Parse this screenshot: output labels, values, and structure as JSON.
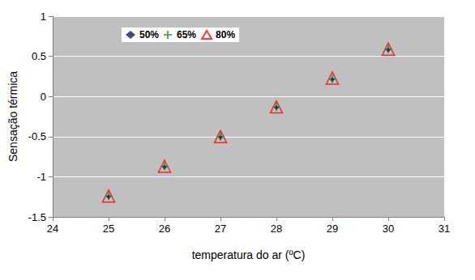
{
  "chart_data": {
    "type": "scatter",
    "xlabel": "temperatura do ar (ºC)",
    "ylabel": "Sensação térmica",
    "x": [
      25,
      26,
      27,
      28,
      29,
      30
    ],
    "series": [
      {
        "name": "50%",
        "color": "#1a1a5e",
        "marker": "diamond",
        "values": [
          -1.25,
          -0.88,
          -0.51,
          -0.14,
          0.21,
          0.58
        ]
      },
      {
        "name": "65%",
        "color": "#2e9e2e",
        "marker": "plus",
        "values": [
          -1.24,
          -0.87,
          -0.5,
          -0.13,
          0.22,
          0.59
        ]
      },
      {
        "name": "80%",
        "color": "#ff0000",
        "marker": "open_triangle",
        "values": [
          -1.24,
          -0.87,
          -0.5,
          -0.13,
          0.23,
          0.59
        ]
      }
    ],
    "xlim": [
      24,
      31
    ],
    "xticks": [
      24,
      25,
      26,
      27,
      28,
      29,
      30,
      31
    ],
    "ylim": [
      -1.5,
      1
    ],
    "yticks": [
      -1.5,
      -1,
      -0.5,
      0,
      0.5,
      1
    ],
    "grid": true,
    "legend": "top-left"
  }
}
